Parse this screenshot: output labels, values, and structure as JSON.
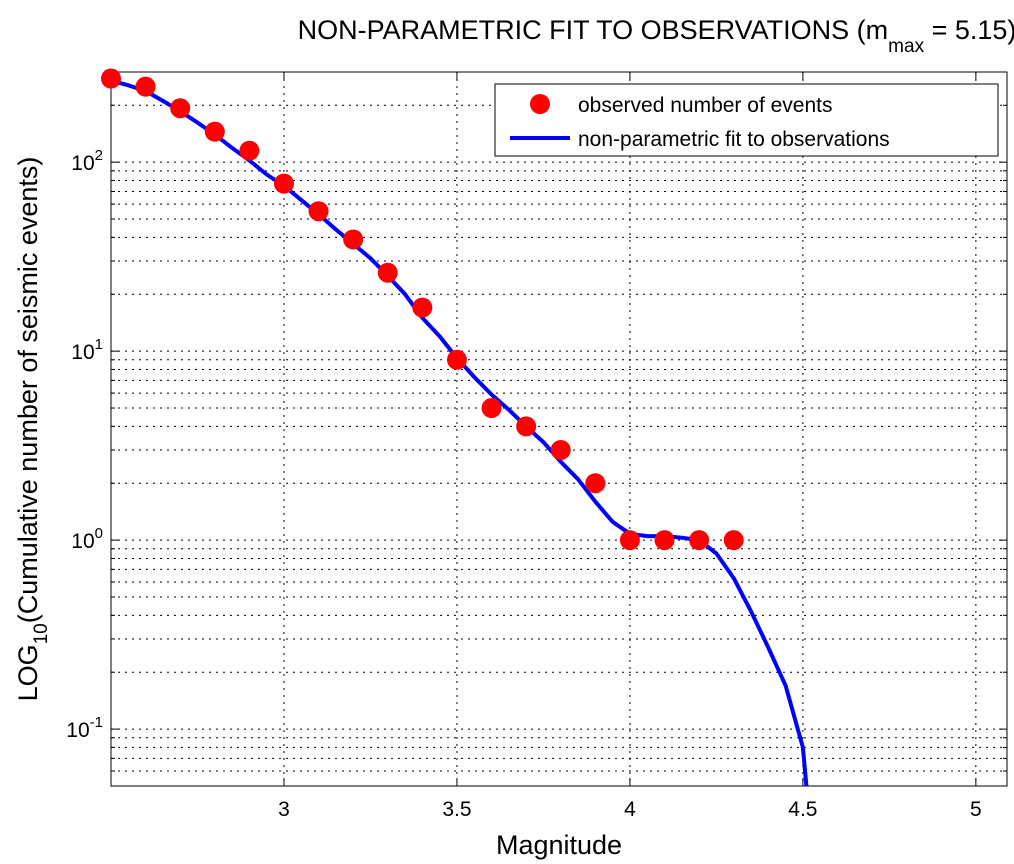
{
  "title": {
    "main": "NON-PARAMETRIC FIT TO OBSERVATIONS (m",
    "sub": "max",
    "tail": " = 5.15)"
  },
  "xlabel": "Magnitude",
  "ylabel": {
    "prefix": "LOG",
    "sub": "10",
    "suffix": "(Cumulative number of seismic events)"
  },
  "legend": {
    "position": "top-right",
    "entries": [
      {
        "label": "observed number of events",
        "color": "#ff0000",
        "marker": "circle"
      },
      {
        "label": "non-parametric fit to observations",
        "color": "#0000ff",
        "marker": "line"
      }
    ]
  },
  "chart_data": {
    "type": "scatter",
    "x_scale": "linear",
    "y_scale": "log",
    "xlim": [
      2.5,
      5.09
    ],
    "ylim": [
      0.05,
      300
    ],
    "grid": true,
    "x_ticks": [
      {
        "value": 3,
        "label": "3"
      },
      {
        "value": 3.5,
        "label": "3.5"
      },
      {
        "value": 4,
        "label": "4"
      },
      {
        "value": 4.5,
        "label": "4.5"
      },
      {
        "value": 5,
        "label": "5"
      }
    ],
    "y_ticks": [
      {
        "value": 0.1,
        "base": "10",
        "exp": "-1"
      },
      {
        "value": 1,
        "base": "10",
        "exp": "0"
      },
      {
        "value": 10,
        "base": "10",
        "exp": "1"
      },
      {
        "value": 100,
        "base": "10",
        "exp": "2"
      }
    ],
    "series": [
      {
        "name": "observed number of events",
        "type": "scatter",
        "color": "#ff0000",
        "x": [
          2.5,
          2.6,
          2.7,
          2.8,
          2.9,
          3.0,
          3.1,
          3.2,
          3.3,
          3.4,
          3.5,
          3.6,
          3.7,
          3.8,
          3.9,
          4.0,
          4.1,
          4.2,
          4.3
        ],
        "y": [
          277,
          251,
          193,
          145,
          115,
          77,
          55,
          39,
          26,
          17,
          9,
          5,
          4,
          3,
          2,
          1,
          1,
          1,
          1
        ]
      },
      {
        "name": "non-parametric fit to observations",
        "type": "line",
        "color": "#0000ff",
        "x": [
          2.5,
          2.55,
          2.6,
          2.65,
          2.7,
          2.75,
          2.8,
          2.85,
          2.9,
          2.95,
          3.0,
          3.05,
          3.1,
          3.15,
          3.2,
          3.25,
          3.3,
          3.35,
          3.4,
          3.45,
          3.5,
          3.55,
          3.6,
          3.65,
          3.7,
          3.75,
          3.8,
          3.85,
          3.9,
          3.95,
          4.0,
          4.05,
          4.1,
          4.15,
          4.2,
          4.25,
          4.3,
          4.35,
          4.4,
          4.45,
          4.5,
          4.51
        ],
        "y": [
          270,
          255,
          238,
          211,
          186,
          162,
          140,
          119,
          102,
          86,
          75,
          63,
          53,
          44,
          37,
          31,
          25,
          20,
          15,
          12,
          9.2,
          7.3,
          5.9,
          4.9,
          4.0,
          3.3,
          2.6,
          2.1,
          1.6,
          1.25,
          1.08,
          1.05,
          1.05,
          1.03,
          1.0,
          0.85,
          0.63,
          0.42,
          0.27,
          0.17,
          0.08,
          0.05
        ]
      }
    ]
  }
}
